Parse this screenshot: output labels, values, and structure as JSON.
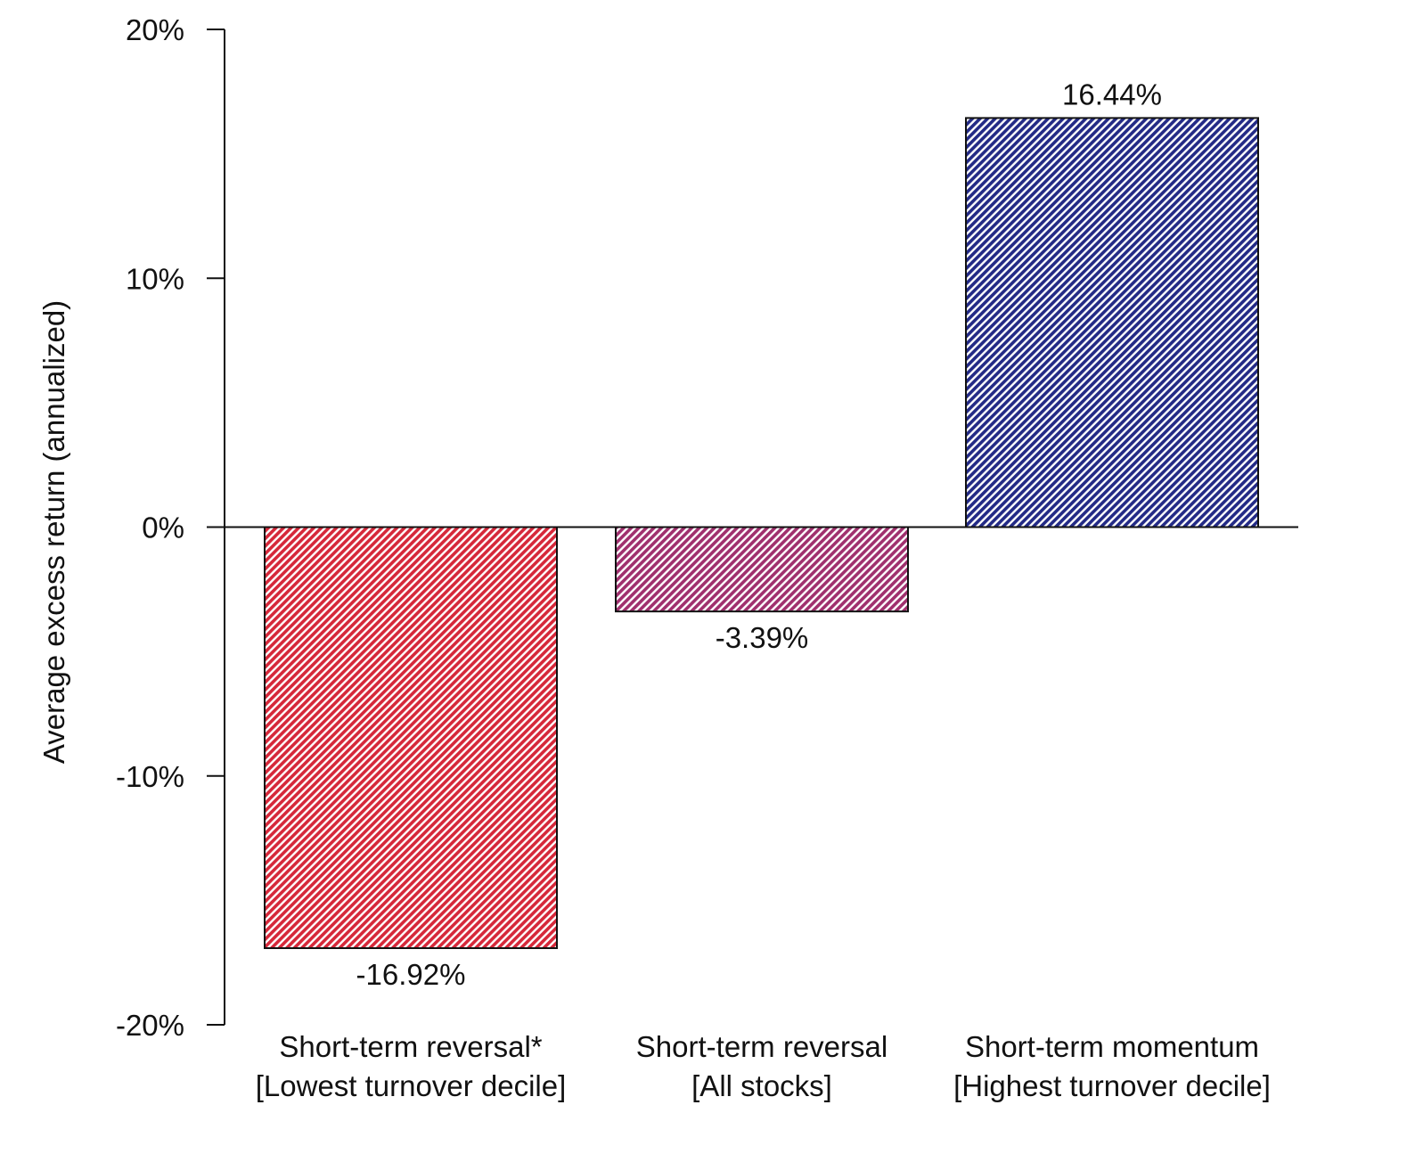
{
  "chart_data": {
    "type": "bar",
    "title": "",
    "xlabel": "",
    "ylabel": "Average excess return (annualized)",
    "ylim": [
      -20,
      20
    ],
    "yticks": [
      20,
      10,
      0,
      -10,
      -20
    ],
    "ytick_labels": [
      "20%",
      "10%",
      "0%",
      "-10%",
      "-20%"
    ],
    "grid": false,
    "legend": "none",
    "categories": [
      {
        "line1": "Short-term reversal*",
        "line2": "[Lowest turnover decile]"
      },
      {
        "line1": "Short-term reversal",
        "line2": "[All stocks]"
      },
      {
        "line1": "Short-term momentum",
        "line2": "[Highest turnover decile]"
      }
    ],
    "values": [
      -16.92,
      -3.39,
      16.44
    ],
    "value_labels": [
      "-16.92%",
      "-3.39%",
      "16.44%"
    ],
    "bar_colors": [
      "#d6283a",
      "#a0306e",
      "#232a86"
    ],
    "hatch": "diagonal"
  }
}
